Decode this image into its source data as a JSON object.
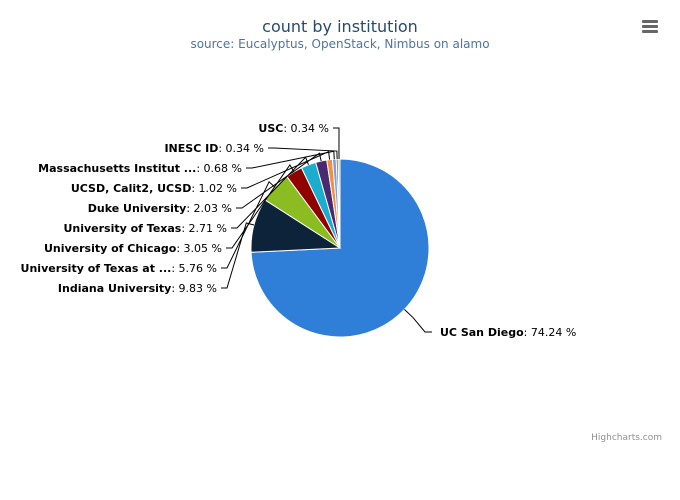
{
  "chart_data": {
    "type": "pie",
    "title": "count by institution",
    "subtitle": "source: Eucalyptus, OpenStack, Nimbus on alamo",
    "slices": [
      {
        "name": "UC San Diego",
        "value": 74.24,
        "color": "#2f7ed8"
      },
      {
        "name": "Indiana University",
        "value": 9.83,
        "color": "#0d233a"
      },
      {
        "name": "University of Texas at ...",
        "value": 5.76,
        "color": "#8bbc21"
      },
      {
        "name": "University of Chicago",
        "value": 3.05,
        "color": "#910000"
      },
      {
        "name": "University of Texas",
        "value": 2.71,
        "color": "#1aadce"
      },
      {
        "name": "Duke University",
        "value": 2.03,
        "color": "#492970"
      },
      {
        "name": "UCSD, Calit2, UCSD",
        "value": 1.02,
        "color": "#f28f43"
      },
      {
        "name": "Massachusetts Institut ...",
        "value": 0.68,
        "color": "#77a1e5"
      },
      {
        "name": "INESC ID",
        "value": 0.34,
        "color": "#c42525"
      },
      {
        "name": "USC",
        "value": 0.34,
        "color": "#a6c96a"
      }
    ],
    "value_suffix": " %"
  },
  "credits": "Highcharts.com",
  "menu_icon": "hamburger-menu-icon"
}
